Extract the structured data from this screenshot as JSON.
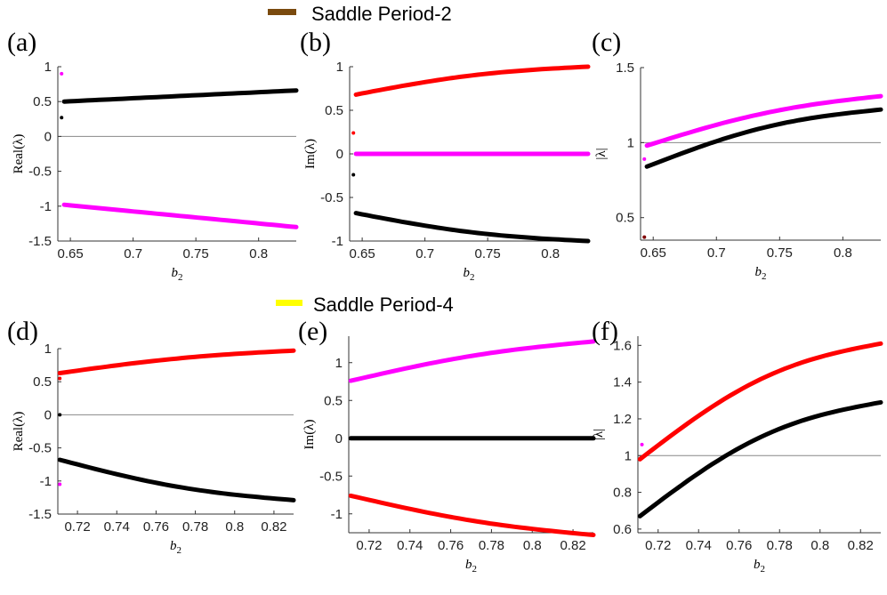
{
  "legends": [
    {
      "label": "Saddle Period-2",
      "color": "#7a4a0e"
    },
    {
      "label": "Saddle Period-4",
      "color": "#ffff00"
    }
  ],
  "chart_data": [
    {
      "panel": "(a)",
      "type": "line",
      "xlabel": "b2",
      "ylabel": "Real(λ)",
      "xlim": [
        0.64,
        0.83
      ],
      "ylim": [
        -1.5,
        1
      ],
      "xticks": [
        0.65,
        0.7,
        0.75,
        0.8
      ],
      "xtick_labels": [
        "0.65",
        "0.7",
        "0.75",
        "0.8"
      ],
      "yticks": [
        1,
        0.5,
        0,
        -0.5,
        -1,
        -1.5
      ],
      "ytick_labels": [
        "1",
        "0.5",
        "0",
        "-0.5",
        "-1",
        "-1.5"
      ],
      "hline": 0,
      "series": [
        {
          "name": "eig1",
          "color": "#000000",
          "x": [
            0.645,
            0.83
          ],
          "y": [
            0.5,
            0.66
          ],
          "curve": 0.0
        },
        {
          "name": "eig2",
          "color": "#ff00ff",
          "x": [
            0.645,
            0.83
          ],
          "y": [
            -0.98,
            -1.3
          ],
          "curve": 0.0
        }
      ],
      "markers": [
        {
          "x": 0.643,
          "y": 0.9,
          "color": "#ff00ff"
        },
        {
          "x": 0.643,
          "y": 0.27,
          "color": "#000000"
        }
      ]
    },
    {
      "panel": "(b)",
      "type": "line",
      "xlabel": "b2",
      "ylabel": "Im(λ)",
      "xlim": [
        0.64,
        0.83
      ],
      "ylim": [
        -1,
        1
      ],
      "xticks": [
        0.65,
        0.7,
        0.75,
        0.8
      ],
      "xtick_labels": [
        "0.65",
        "0.7",
        "0.75",
        "0.8"
      ],
      "yticks": [
        1,
        0.5,
        0,
        -0.5,
        -1
      ],
      "ytick_labels": [
        "1",
        "0.5",
        "0",
        "-0.5",
        "-1"
      ],
      "hline": null,
      "series": [
        {
          "name": "eig1",
          "color": "#ff0000",
          "x": [
            0.645,
            0.83
          ],
          "y": [
            0.68,
            1.0
          ],
          "curve": 0.06
        },
        {
          "name": "eig2",
          "color": "#ff00ff",
          "x": [
            0.645,
            0.83
          ],
          "y": [
            0.0,
            0.0
          ],
          "curve": 0.0
        },
        {
          "name": "eig3",
          "color": "#000000",
          "x": [
            0.645,
            0.83
          ],
          "y": [
            -0.68,
            -1.0
          ],
          "curve": -0.06
        }
      ],
      "markers": [
        {
          "x": 0.643,
          "y": 0.24,
          "color": "#ff0000"
        },
        {
          "x": 0.643,
          "y": -0.24,
          "color": "#000000"
        }
      ]
    },
    {
      "panel": "(c)",
      "type": "line",
      "xlabel": "b2",
      "ylabel": "|λ|",
      "xlim": [
        0.64,
        0.83
      ],
      "ylim": [
        0.35,
        1.5
      ],
      "xticks": [
        0.65,
        0.7,
        0.75,
        0.8
      ],
      "xtick_labels": [
        "0.65",
        "0.7",
        "0.75",
        "0.8"
      ],
      "yticks": [
        1.5,
        1,
        0.5
      ],
      "ytick_labels": [
        "1.5",
        "1",
        "0.5"
      ],
      "hline": 1,
      "series": [
        {
          "name": "eig1",
          "color": "#ff00ff",
          "x": [
            0.645,
            0.83
          ],
          "y": [
            0.98,
            1.31
          ],
          "curve": 0.05
        },
        {
          "name": "eig2",
          "color": "#000000",
          "x": [
            0.645,
            0.83
          ],
          "y": [
            0.84,
            1.22
          ],
          "curve": 0.07
        }
      ],
      "markers": [
        {
          "x": 0.643,
          "y": 0.89,
          "color": "#ff00ff"
        },
        {
          "x": 0.643,
          "y": 0.37,
          "color": "#800000"
        }
      ]
    },
    {
      "panel": "(d)",
      "type": "line",
      "xlabel": "b2",
      "ylabel": "Real(λ)",
      "xlim": [
        0.71,
        0.83
      ],
      "ylim": [
        -1.5,
        1
      ],
      "xticks": [
        0.72,
        0.74,
        0.76,
        0.78,
        0.8,
        0.82
      ],
      "xtick_labels": [
        "0.72",
        "0.74",
        "0.76",
        "0.78",
        "0.8",
        "0.82"
      ],
      "yticks": [
        1,
        0.5,
        0,
        -0.5,
        -1,
        -1.5
      ],
      "ytick_labels": [
        "1",
        "0.5",
        "0",
        "-0.5",
        "-1",
        "-1.5"
      ],
      "hline": 0,
      "series": [
        {
          "name": "eig1",
          "color": "#ff0000",
          "x": [
            0.711,
            0.83
          ],
          "y": [
            0.63,
            0.97
          ],
          "curve": 0.05
        },
        {
          "name": "eig2",
          "color": "#000000",
          "x": [
            0.711,
            0.83
          ],
          "y": [
            -0.68,
            -1.29
          ],
          "curve": -0.1
        }
      ],
      "markers": [
        {
          "x": 0.711,
          "y": 0.55,
          "color": "#ff0000"
        },
        {
          "x": 0.711,
          "y": 0.0,
          "color": "#000000"
        },
        {
          "x": 0.711,
          "y": -1.05,
          "color": "#ff00ff"
        }
      ]
    },
    {
      "panel": "(e)",
      "type": "line",
      "xlabel": "b2",
      "ylabel": "Im(λ)",
      "xlim": [
        0.71,
        0.83
      ],
      "ylim": [
        -1.25,
        1.35
      ],
      "xticks": [
        0.72,
        0.74,
        0.76,
        0.78,
        0.8,
        0.82
      ],
      "xtick_labels": [
        "0.72",
        "0.74",
        "0.76",
        "0.78",
        "0.8",
        "0.82"
      ],
      "yticks": [
        1,
        0.5,
        0,
        -0.5,
        -1
      ],
      "ytick_labels": [
        "1",
        "0.5",
        "0",
        "-0.5",
        "-1"
      ],
      "hline": null,
      "series": [
        {
          "name": "eig1",
          "color": "#ff00ff",
          "x": [
            0.711,
            0.83
          ],
          "y": [
            0.76,
            1.28
          ],
          "curve": 0.07
        },
        {
          "name": "eig2",
          "color": "#000000",
          "x": [
            0.711,
            0.83
          ],
          "y": [
            0.0,
            0.0
          ],
          "curve": 0.0
        },
        {
          "name": "eig3",
          "color": "#ff0000",
          "x": [
            0.711,
            0.83
          ],
          "y": [
            -0.76,
            -1.28
          ],
          "curve": -0.07
        }
      ],
      "markers": []
    },
    {
      "panel": "(f)",
      "type": "line",
      "xlabel": "b2",
      "ylabel": "|λ|",
      "xlim": [
        0.71,
        0.83
      ],
      "ylim": [
        0.58,
        1.65
      ],
      "xticks": [
        0.72,
        0.74,
        0.76,
        0.78,
        0.8,
        0.82
      ],
      "xtick_labels": [
        "0.72",
        "0.74",
        "0.76",
        "0.78",
        "0.8",
        "0.82"
      ],
      "yticks": [
        1.6,
        1.4,
        1.2,
        1,
        0.8,
        0.6
      ],
      "ytick_labels": [
        "1.6",
        "1.4",
        "1.2",
        "1",
        "0.8",
        "0.6"
      ],
      "hline": 1,
      "series": [
        {
          "name": "eig1",
          "color": "#ff0000",
          "x": [
            0.711,
            0.83
          ],
          "y": [
            0.98,
            1.61
          ],
          "curve": 0.12
        },
        {
          "name": "eig2",
          "color": "#000000",
          "x": [
            0.711,
            0.83
          ],
          "y": [
            0.67,
            1.29
          ],
          "curve": 0.12
        }
      ],
      "markers": [
        {
          "x": 0.712,
          "y": 1.06,
          "color": "#ff00ff"
        }
      ]
    }
  ]
}
